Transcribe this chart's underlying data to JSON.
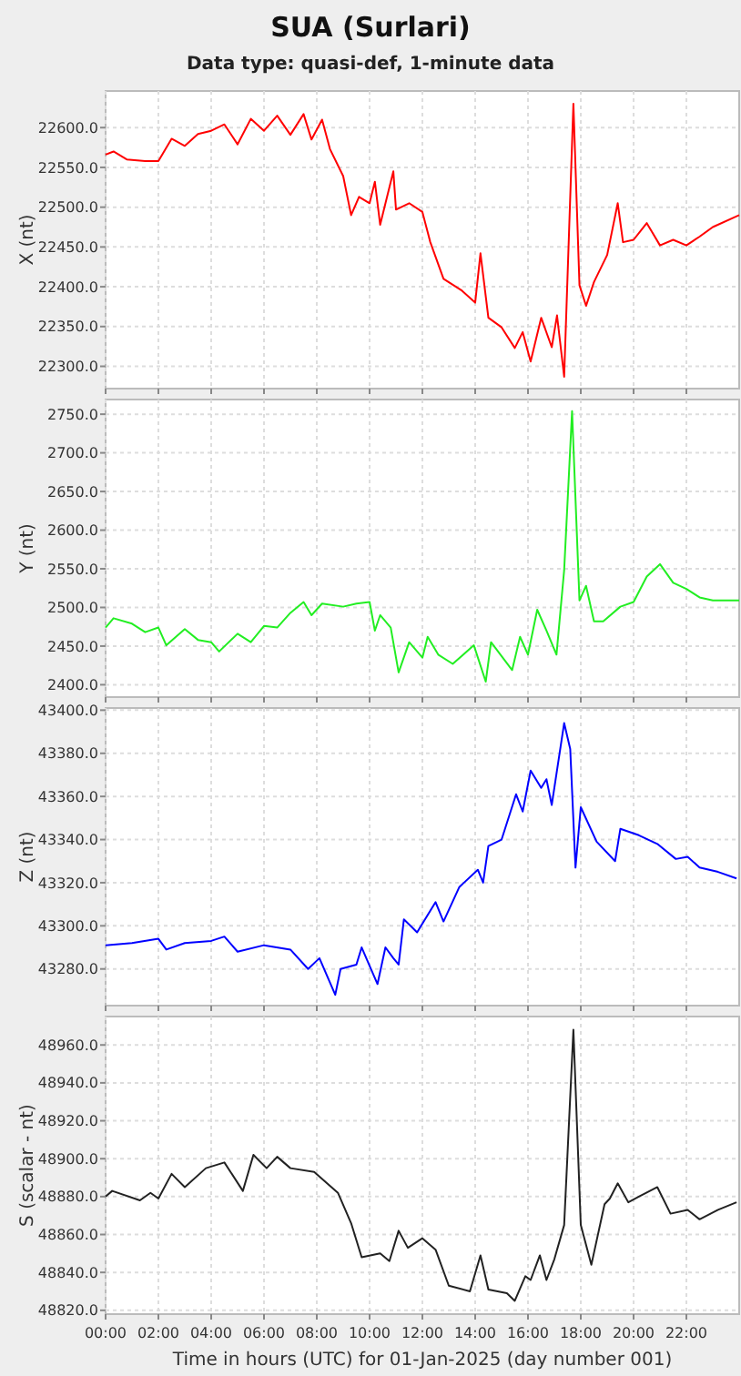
{
  "chart_data": [
    {
      "type": "line",
      "title": "SUA (Surlari)",
      "subtitle": "Data type: quasi-def, 1-minute data",
      "ylabel": "X (nt)",
      "grid": true,
      "tick_labels": "y",
      "xlim": [
        0,
        24
      ],
      "xticks": [
        {
          "value": 0,
          "label": null
        },
        {
          "value": 2,
          "label": null
        },
        {
          "value": 4,
          "label": null
        },
        {
          "value": 6,
          "label": null
        },
        {
          "value": 8,
          "label": null
        },
        {
          "value": 10,
          "label": null
        },
        {
          "value": 12,
          "label": null
        },
        {
          "value": 14,
          "label": null
        },
        {
          "value": 16,
          "label": null
        },
        {
          "value": 18,
          "label": null
        },
        {
          "value": 20,
          "label": null
        },
        {
          "value": 22,
          "label": null
        }
      ],
      "ylim": [
        22272,
        22646
      ],
      "yticks": [
        {
          "value": 22300,
          "label": "22300.0"
        },
        {
          "value": 22350,
          "label": "22350.0"
        },
        {
          "value": 22400,
          "label": "22400.0"
        },
        {
          "value": 22450,
          "label": "22450.0"
        },
        {
          "value": 22500,
          "label": "22500.0"
        },
        {
          "value": 22550,
          "label": "22550.0"
        },
        {
          "value": 22600,
          "label": "22600.0"
        }
      ],
      "series": [
        {
          "color": "#ff0000",
          "x": [
            0,
            0.3,
            0.8,
            1.5,
            2,
            2.5,
            3,
            3.5,
            4,
            4.5,
            5,
            5.5,
            6,
            6.5,
            7,
            7.5,
            7.8,
            8.2,
            8.5,
            9,
            9.3,
            9.6,
            10,
            10.2,
            10.4,
            10.9,
            11,
            11.5,
            12,
            12.3,
            12.8,
            13.5,
            14,
            14.2,
            14.5,
            15,
            15.5,
            15.8,
            16.1,
            16.5,
            16.9,
            17.1,
            17.37,
            17.72,
            17.95,
            18.2,
            18.5,
            19,
            19.4,
            19.6,
            20,
            20.5,
            21,
            21.5,
            22,
            22.5,
            23,
            24
          ],
          "values": [
            22566,
            22570,
            22560,
            22558,
            22558,
            22586,
            22577,
            22592,
            22596,
            22604,
            22579,
            22611,
            22596,
            22615,
            22591,
            22617,
            22585,
            22610,
            22573,
            22539,
            22490,
            22513,
            22505,
            22532,
            22478,
            22545,
            22497,
            22505,
            22494,
            22456,
            22410,
            22395,
            22380,
            22442,
            22361,
            22349,
            22323,
            22343,
            22306,
            22361,
            22324,
            22364,
            22287,
            22630,
            22402,
            22376,
            22406,
            22440,
            22505,
            22456,
            22459,
            22480,
            22452,
            22459,
            22452,
            22463,
            22475,
            22490
          ]
        }
      ]
    },
    {
      "type": "line",
      "ylabel": "Y (nt)",
      "grid": true,
      "tick_labels": "y",
      "xlim": [
        0,
        24
      ],
      "xticks": [
        {
          "value": 0,
          "label": null
        },
        {
          "value": 2,
          "label": null
        },
        {
          "value": 4,
          "label": null
        },
        {
          "value": 6,
          "label": null
        },
        {
          "value": 8,
          "label": null
        },
        {
          "value": 10,
          "label": null
        },
        {
          "value": 12,
          "label": null
        },
        {
          "value": 14,
          "label": null
        },
        {
          "value": 16,
          "label": null
        },
        {
          "value": 18,
          "label": null
        },
        {
          "value": 20,
          "label": null
        },
        {
          "value": 22,
          "label": null
        }
      ],
      "ylim": [
        2384,
        2769
      ],
      "yticks": [
        {
          "value": 2400,
          "label": "2400.0"
        },
        {
          "value": 2450,
          "label": "2450.0"
        },
        {
          "value": 2500,
          "label": "2500.0"
        },
        {
          "value": 2550,
          "label": "2550.0"
        },
        {
          "value": 2600,
          "label": "2600.0"
        },
        {
          "value": 2650,
          "label": "2650.0"
        },
        {
          "value": 2700,
          "label": "2700.0"
        },
        {
          "value": 2750,
          "label": "2750.0"
        }
      ],
      "series": [
        {
          "color": "#22ee22",
          "x": [
            0,
            0.3,
            1,
            1.5,
            2,
            2.3,
            3,
            3.5,
            4,
            4.3,
            5,
            5.5,
            6,
            6.5,
            7,
            7.5,
            7.8,
            8.2,
            9,
            9.5,
            10,
            10.2,
            10.4,
            10.8,
            11.1,
            11.5,
            12,
            12.2,
            12.6,
            13.15,
            13.95,
            14.4,
            14.6,
            15.4,
            15.7,
            16,
            16.35,
            16.7,
            17.08,
            17.37,
            17.67,
            17.95,
            18.2,
            18.5,
            18.85,
            19.5,
            20,
            20.5,
            21,
            21.5,
            22,
            22.5,
            23,
            24
          ],
          "values": [
            2474,
            2486,
            2479,
            2468,
            2474,
            2451,
            2472,
            2458,
            2455,
            2443,
            2466,
            2455,
            2476,
            2474,
            2493,
            2507,
            2490,
            2505,
            2501,
            2505,
            2507,
            2470,
            2490,
            2474,
            2416,
            2455,
            2435,
            2462,
            2439,
            2427,
            2451,
            2404,
            2455,
            2419,
            2462,
            2439,
            2497,
            2470,
            2439,
            2548,
            2754,
            2509,
            2528,
            2482,
            2482,
            2501,
            2507,
            2540,
            2556,
            2532,
            2524,
            2513,
            2509,
            2509
          ]
        }
      ]
    },
    {
      "type": "line",
      "ylabel": "Z (nt)",
      "grid": true,
      "tick_labels": "y",
      "xlim": [
        0,
        24
      ],
      "xticks": [
        {
          "value": 0,
          "label": null
        },
        {
          "value": 2,
          "label": null
        },
        {
          "value": 4,
          "label": null
        },
        {
          "value": 6,
          "label": null
        },
        {
          "value": 8,
          "label": null
        },
        {
          "value": 10,
          "label": null
        },
        {
          "value": 12,
          "label": null
        },
        {
          "value": 14,
          "label": null
        },
        {
          "value": 16,
          "label": null
        },
        {
          "value": 18,
          "label": null
        },
        {
          "value": 20,
          "label": null
        },
        {
          "value": 22,
          "label": null
        }
      ],
      "ylim": [
        43263,
        43401
      ],
      "yticks": [
        {
          "value": 43280,
          "label": "43280.0"
        },
        {
          "value": 43300,
          "label": "43300.0"
        },
        {
          "value": 43320,
          "label": "43320.0"
        },
        {
          "value": 43340,
          "label": "43340.0"
        },
        {
          "value": 43360,
          "label": "43360.0"
        },
        {
          "value": 43380,
          "label": "43380.0"
        },
        {
          "value": 43400,
          "label": "43400.0"
        }
      ],
      "series": [
        {
          "color": "#0000ff",
          "x": [
            0,
            1,
            2,
            2.3,
            3,
            4,
            4.5,
            5,
            6,
            7,
            7.67,
            8.1,
            8.7,
            8.9,
            9.5,
            9.7,
            10.3,
            10.6,
            10.9,
            11.1,
            11.3,
            11.8,
            12.5,
            12.8,
            13.4,
            14.1,
            14.3,
            14.5,
            15,
            15.55,
            15.8,
            16.1,
            16.5,
            16.7,
            16.9,
            17.37,
            17.6,
            17.8,
            18,
            18.6,
            19.3,
            19.5,
            20.2,
            20.9,
            21.6,
            22.05,
            22.5,
            23.2,
            23.9
          ],
          "values": [
            43291,
            43292,
            43294,
            43289,
            43292,
            43293,
            43295,
            43288,
            43291,
            43289,
            43280,
            43285,
            43268,
            43280,
            43282,
            43290,
            43273,
            43290,
            43285,
            43282,
            43303,
            43297,
            43311,
            43302,
            43318,
            43326,
            43320,
            43337,
            43340,
            43361,
            43353,
            43372,
            43364,
            43368,
            43356,
            43394,
            43382,
            43327,
            43355,
            43339,
            43330,
            43345,
            43342,
            43338,
            43331,
            43332,
            43327,
            43325,
            43322
          ]
        }
      ]
    },
    {
      "type": "line",
      "ylabel": "S (scalar - nt)",
      "xlabel": "Time in hours (UTC) for 01-Jan-2025 (day number 001)",
      "grid": true,
      "xlim": [
        0,
        24
      ],
      "xticks": [
        {
          "value": 0,
          "label": "00:00"
        },
        {
          "value": 2,
          "label": "02:00"
        },
        {
          "value": 4,
          "label": "04:00"
        },
        {
          "value": 6,
          "label": "06:00"
        },
        {
          "value": 8,
          "label": "08:00"
        },
        {
          "value": 10,
          "label": "10:00"
        },
        {
          "value": 12,
          "label": "12:00"
        },
        {
          "value": 14,
          "label": "14:00"
        },
        {
          "value": 16,
          "label": "16:00"
        },
        {
          "value": 18,
          "label": "18:00"
        },
        {
          "value": 20,
          "label": "20:00"
        },
        {
          "value": 22,
          "label": "22:00"
        }
      ],
      "ylim": [
        48818,
        48975
      ],
      "yticks": [
        {
          "value": 48820,
          "label": "48820.0"
        },
        {
          "value": 48840,
          "label": "48840.0"
        },
        {
          "value": 48860,
          "label": "48860.0"
        },
        {
          "value": 48880,
          "label": "48880.0"
        },
        {
          "value": 48900,
          "label": "48900.0"
        },
        {
          "value": 48920,
          "label": "48920.0"
        },
        {
          "value": 48940,
          "label": "48940.0"
        },
        {
          "value": 48960,
          "label": "48960.0"
        }
      ],
      "series": [
        {
          "color": "#222222",
          "x": [
            0,
            0.25,
            1.3,
            1.7,
            2,
            2.5,
            3,
            3.8,
            4.5,
            5.2,
            5.6,
            6.1,
            6.5,
            7,
            7.9,
            8.8,
            9.3,
            9.7,
            10.4,
            10.75,
            11.1,
            11.45,
            12,
            12.5,
            13,
            13.8,
            14.2,
            14.5,
            15.2,
            15.5,
            15.9,
            16.1,
            16.45,
            16.7,
            17,
            17.37,
            17.72,
            18,
            18.4,
            18.9,
            19.1,
            19.4,
            19.8,
            20.2,
            20.9,
            21.4,
            22.05,
            22.5,
            23.2,
            23.9
          ],
          "values": [
            48880,
            48883,
            48878,
            48882,
            48879,
            48892,
            48885,
            48895,
            48898,
            48883,
            48902,
            48895,
            48901,
            48895,
            48893,
            48882,
            48866,
            48848,
            48850,
            48846,
            48862,
            48853,
            48858,
            48852,
            48833,
            48830,
            48849,
            48831,
            48829,
            48825,
            48838,
            48836,
            48849,
            48836,
            48847,
            48865,
            48968,
            48865,
            48844,
            48876,
            48879,
            48887,
            48877,
            48880,
            48885,
            48871,
            48873,
            48868,
            48873,
            48877
          ]
        }
      ]
    }
  ]
}
